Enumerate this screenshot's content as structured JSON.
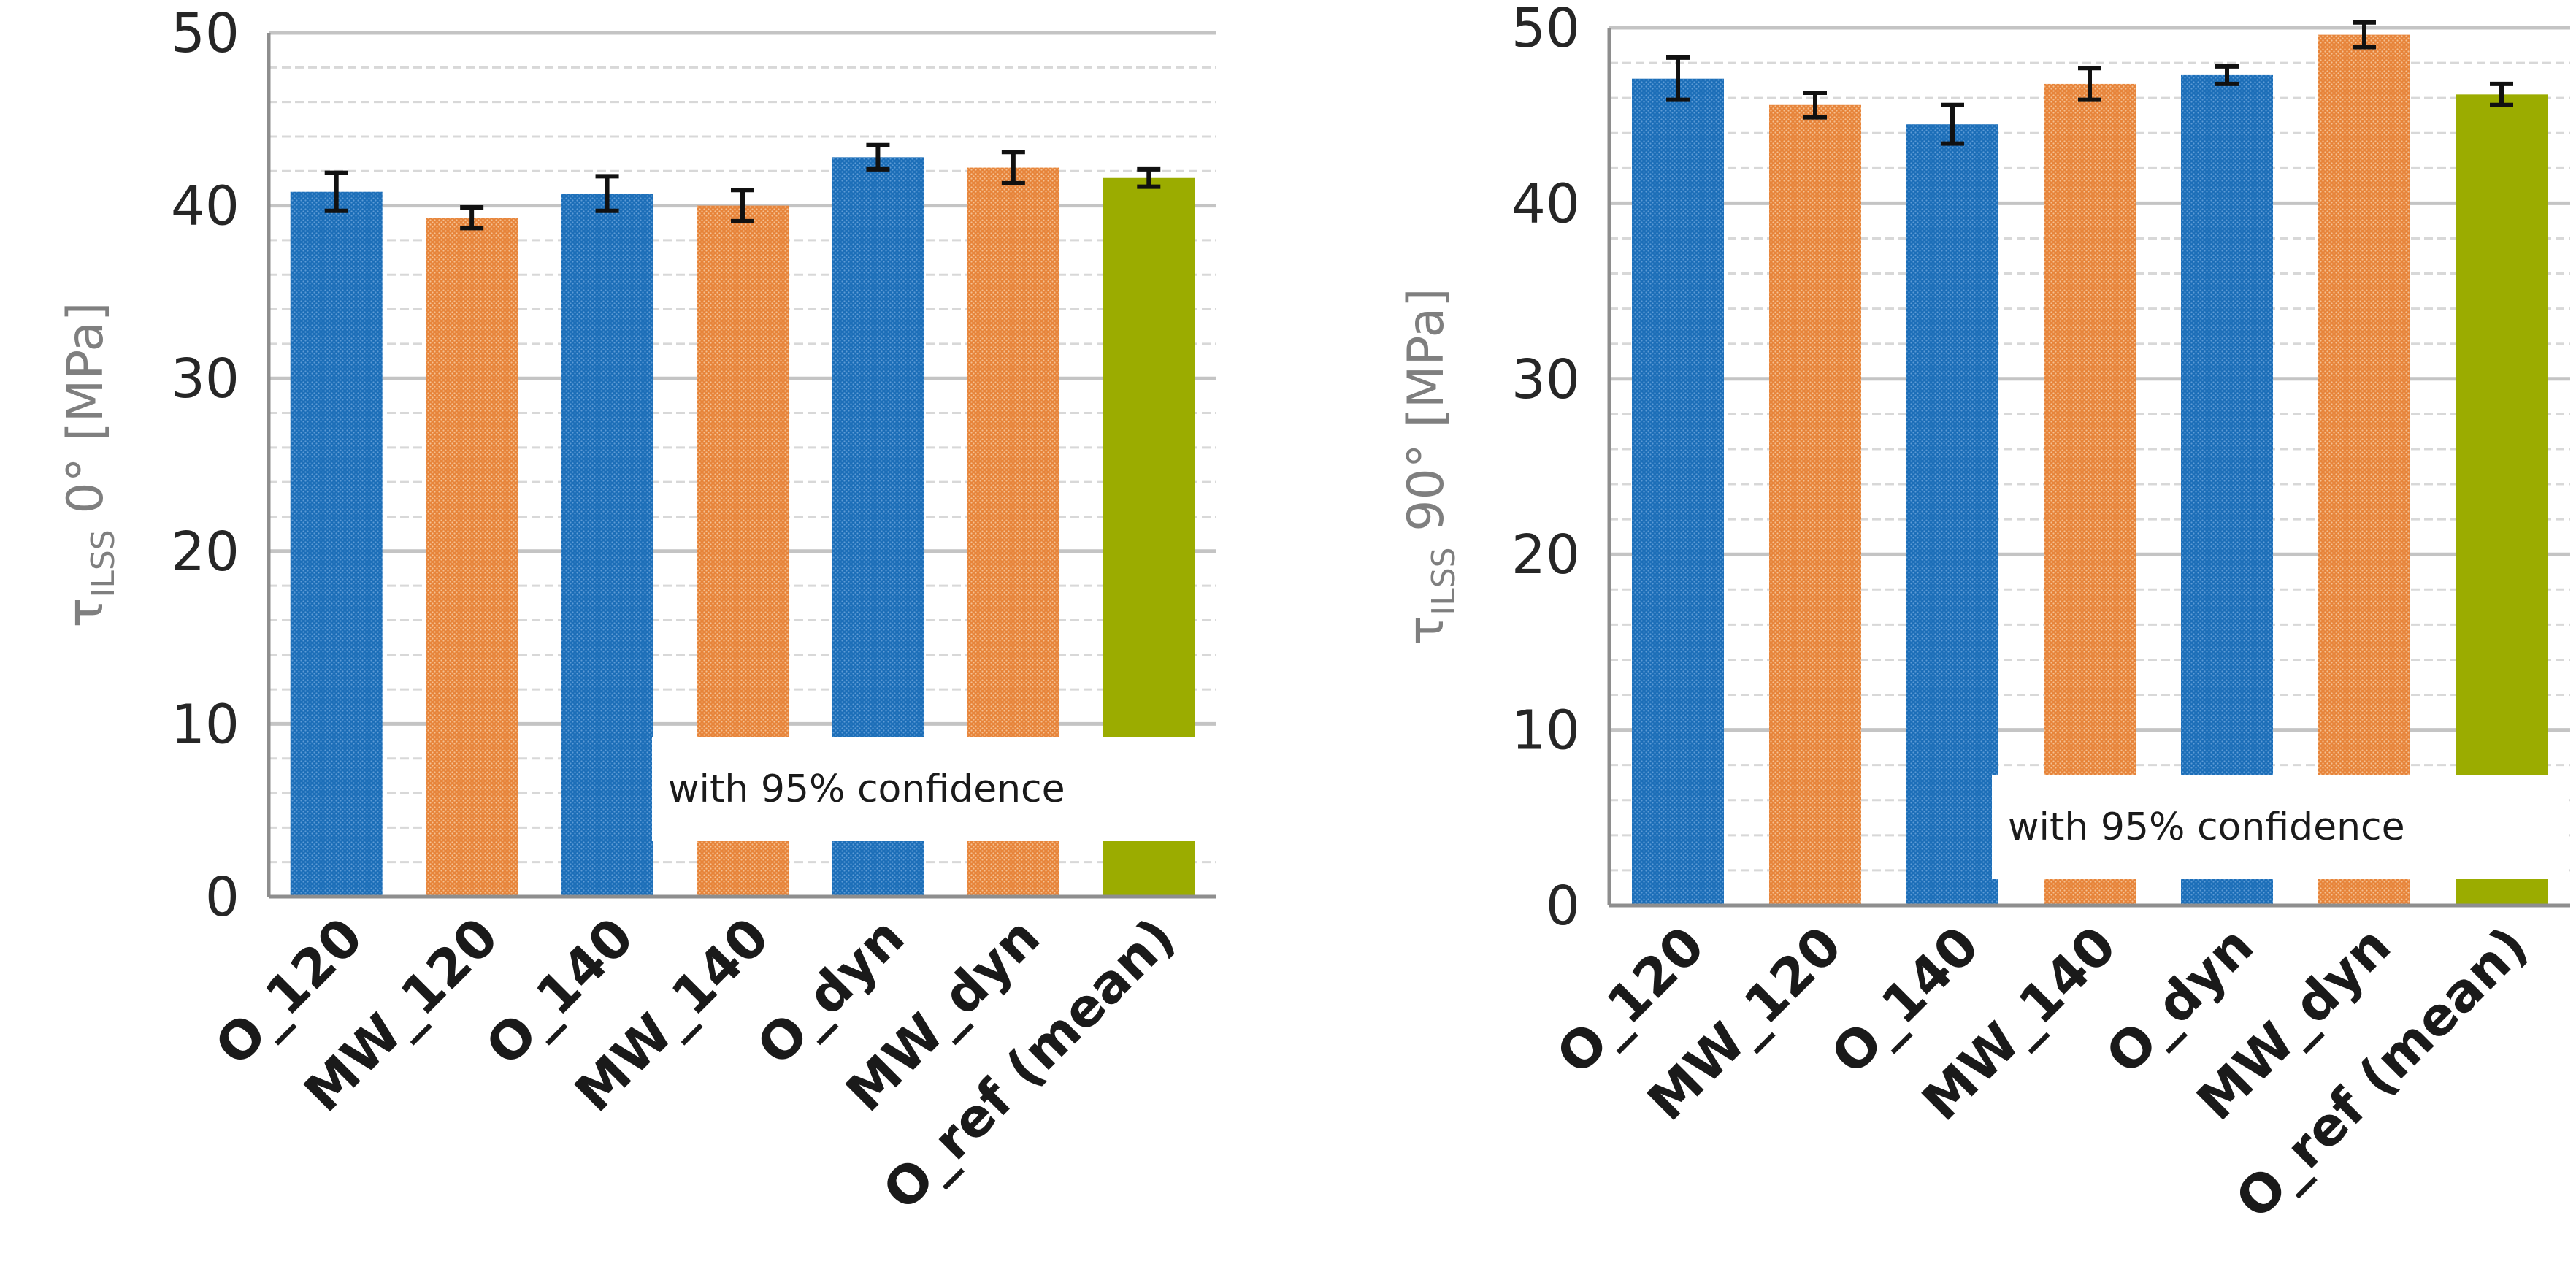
{
  "chart_data": [
    {
      "type": "bar",
      "ylabel": "τILSS 0° [MPa]",
      "ylabel_parts": {
        "symbol": "τ",
        "subscript": "ILSS",
        "rest": " 0° [MPa]"
      },
      "categories": [
        "O_120",
        "MW_120",
        "O_140",
        "MW_140",
        "O_dyn",
        "MW_dyn",
        "O_ref (mean)"
      ],
      "values": [
        40.8,
        39.3,
        40.7,
        40.0,
        42.8,
        42.2,
        41.6
      ],
      "error": [
        1.1,
        0.6,
        1.0,
        0.9,
        0.7,
        0.9,
        0.5
      ],
      "ylim": [
        0,
        50
      ],
      "yticks": [
        "0",
        "10",
        "20",
        "30",
        "40",
        "50"
      ],
      "major_step": 10,
      "minor_step": 2,
      "annotation": "with 95% confidence",
      "grid": true,
      "legend": "none"
    },
    {
      "type": "bar",
      "ylabel": "τILSS 90° [MPa]",
      "ylabel_parts": {
        "symbol": "τ",
        "subscript": "ILSS",
        "rest": " 90° [MPa]"
      },
      "categories": [
        "O_120",
        "MW_120",
        "O_140",
        "MW_140",
        "O_dyn",
        "MW_dyn",
        "O_ref (mean)"
      ],
      "values": [
        47.1,
        45.6,
        44.5,
        46.8,
        47.3,
        49.6,
        46.2
      ],
      "error": [
        1.2,
        0.7,
        1.1,
        0.9,
        0.5,
        0.7,
        0.6
      ],
      "ylim": [
        0,
        50
      ],
      "yticks": [
        "0",
        "10",
        "20",
        "30",
        "40",
        "50"
      ],
      "major_step": 10,
      "minor_step": 2,
      "annotation": "with 95% confidence",
      "grid": true,
      "legend": "none"
    }
  ],
  "colors": {
    "blue": "#1C6EB8",
    "orange": "#E7843A",
    "olive": "#9BAC00",
    "axis": "#8E8E8E",
    "major_grid": "#C4C4C4",
    "minor_grid": "#D8D8D8",
    "tick_text": "#262626",
    "label_text": "#7F7F7F"
  },
  "bar_color_keys": [
    "blue",
    "orange",
    "blue",
    "orange",
    "blue",
    "orange",
    "olive"
  ]
}
